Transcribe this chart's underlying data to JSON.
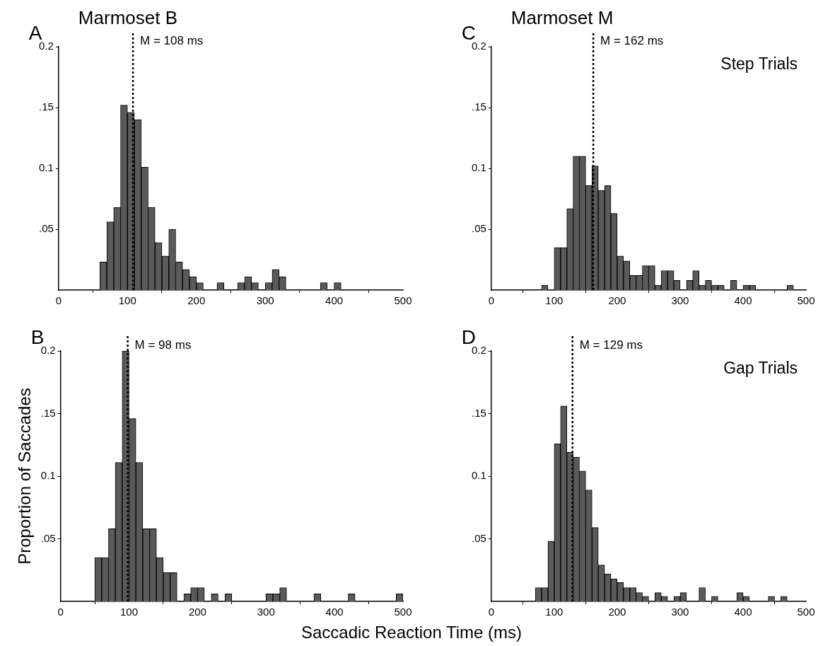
{
  "chart_data": [
    {
      "type": "histogram",
      "title": "Marmoset B",
      "annotations": [
        "A"
      ],
      "color": "#5a5a5a",
      "bins": [
        60,
        70,
        80,
        90,
        100,
        110,
        120,
        130,
        140,
        150,
        160,
        170,
        180,
        190,
        200,
        210,
        220,
        230,
        240,
        250,
        260,
        270,
        280,
        290,
        300,
        310,
        320,
        330,
        340,
        350,
        360,
        370,
        380,
        390,
        400,
        410
      ],
      "values": [
        0.023,
        0.056,
        0.068,
        0.152,
        0.146,
        0.14,
        0.101,
        0.068,
        0.039,
        0.028,
        0.05,
        0.023,
        0.017,
        0.011,
        0.006,
        0,
        0,
        0.006,
        0,
        0,
        0.006,
        0.011,
        0.006,
        0,
        0.006,
        0.017,
        0.011,
        0,
        0,
        0,
        0,
        0,
        0.006,
        0,
        0.006
      ],
      "xlim": [
        0,
        500
      ],
      "xticks": [
        0,
        100,
        200,
        300,
        400,
        500
      ],
      "ylim": [
        0,
        0.2
      ],
      "yticks": [
        {
          "value": 0.05,
          "label": ".05"
        },
        {
          "value": 0.1,
          "label": "0.1"
        },
        {
          "value": 0.15,
          "label": ".15"
        },
        {
          "value": 0.2,
          "label": "0.2"
        }
      ],
      "ref_lines": [
        {
          "axis": "x",
          "value": 108,
          "label": "M = 108 ms",
          "color": "#000000",
          "line_style": "dotted"
        }
      ]
    },
    {
      "type": "histogram",
      "title": "Marmoset M",
      "annotations": [
        "C",
        "Step Trials"
      ],
      "color": "#5a5a5a",
      "bins": [
        80,
        90,
        100,
        110,
        120,
        130,
        140,
        150,
        160,
        170,
        180,
        190,
        200,
        210,
        220,
        230,
        240,
        250,
        260,
        270,
        280,
        290,
        300,
        310,
        320,
        330,
        340,
        350,
        360,
        370,
        380,
        390,
        400,
        410,
        420,
        430,
        440,
        450,
        460,
        470,
        480
      ],
      "values": [
        0.004,
        0,
        0.035,
        0.035,
        0.067,
        0.11,
        0.11,
        0.086,
        0.102,
        0.082,
        0.086,
        0.063,
        0.028,
        0.024,
        0.012,
        0.012,
        0.02,
        0.02,
        0.004,
        0.016,
        0.016,
        0.008,
        0,
        0.008,
        0.016,
        0.004,
        0.008,
        0.004,
        0.004,
        0,
        0.008,
        0,
        0.004,
        0.004,
        0,
        0,
        0,
        0,
        0,
        0.004
      ],
      "xlim": [
        0,
        500
      ],
      "xticks": [
        0,
        100,
        200,
        300,
        400,
        500
      ],
      "ylim": [
        0,
        0.2
      ],
      "yticks": [
        {
          "value": 0.05,
          "label": ".05"
        },
        {
          "value": 0.1,
          "label": "0.1"
        },
        {
          "value": 0.15,
          "label": ".15"
        },
        {
          "value": 0.2,
          "label": "0.2"
        }
      ],
      "ref_lines": [
        {
          "axis": "x",
          "value": 162,
          "label": "M = 162 ms",
          "color": "#000000",
          "line_style": "dotted"
        }
      ]
    },
    {
      "type": "histogram",
      "annotations": [
        "B"
      ],
      "color": "#5a5a5a",
      "ylabel": "Proportion of Saccades",
      "xlabel": "Saccadic Reaction Time (ms)",
      "bins": [
        50,
        60,
        70,
        80,
        90,
        100,
        110,
        120,
        130,
        140,
        150,
        160,
        170,
        180,
        190,
        200,
        210,
        220,
        230,
        240,
        250,
        260,
        270,
        280,
        290,
        300,
        310,
        320,
        330,
        340,
        350,
        360,
        370,
        380,
        390,
        400,
        410,
        420,
        430,
        440,
        450,
        460,
        470,
        480,
        490,
        500
      ],
      "values": [
        0.035,
        0.035,
        0.058,
        0.111,
        0.2,
        0.146,
        0.111,
        0.058,
        0.058,
        0.035,
        0.023,
        0.023,
        0,
        0.006,
        0.011,
        0.011,
        0,
        0.006,
        0,
        0.006,
        0,
        0,
        0,
        0,
        0,
        0.006,
        0.006,
        0.011,
        0,
        0,
        0,
        0,
        0.006,
        0,
        0,
        0,
        0,
        0.006,
        0,
        0,
        0,
        0,
        0,
        0,
        0.006
      ],
      "xlim": [
        0,
        500
      ],
      "xticks": [
        0,
        100,
        200,
        300,
        400,
        500
      ],
      "ylim": [
        0,
        0.2
      ],
      "yticks": [
        {
          "value": 0.05,
          "label": ".05"
        },
        {
          "value": 0.1,
          "label": "0.1"
        },
        {
          "value": 0.15,
          "label": ".15"
        },
        {
          "value": 0.2,
          "label": "0.2"
        }
      ],
      "ref_lines": [
        {
          "axis": "x",
          "value": 98,
          "label": "M = 98 ms",
          "color": "#000000",
          "line_style": "dotted"
        }
      ]
    },
    {
      "type": "histogram",
      "annotations": [
        "D",
        "Gap Trials"
      ],
      "color": "#5a5a5a",
      "bins": [
        70,
        80,
        90,
        100,
        110,
        120,
        130,
        140,
        150,
        160,
        170,
        180,
        190,
        200,
        210,
        220,
        230,
        240,
        250,
        260,
        270,
        280,
        290,
        300,
        310,
        320,
        330,
        340,
        350,
        360,
        370,
        380,
        390,
        400,
        410,
        420,
        430,
        440,
        450,
        460,
        470
      ],
      "values": [
        0.011,
        0.011,
        0.048,
        0.126,
        0.156,
        0.119,
        0.115,
        0.104,
        0.089,
        0.059,
        0.029,
        0.022,
        0.018,
        0.015,
        0.011,
        0.011,
        0.007,
        0.004,
        0,
        0.007,
        0.004,
        0,
        0.004,
        0.007,
        0,
        0,
        0.011,
        0,
        0.004,
        0,
        0,
        0,
        0.007,
        0.004,
        0,
        0,
        0,
        0.004,
        0,
        0.004
      ],
      "xlim": [
        0,
        500
      ],
      "xticks": [
        0,
        100,
        200,
        300,
        400,
        500
      ],
      "ylim": [
        0,
        0.2
      ],
      "yticks": [
        {
          "value": 0.05,
          "label": ".05"
        },
        {
          "value": 0.1,
          "label": "0.1"
        },
        {
          "value": 0.15,
          "label": ".15"
        },
        {
          "value": 0.2,
          "label": "0.2"
        }
      ],
      "ref_lines": [
        {
          "axis": "x",
          "value": 129,
          "label": "M = 129 ms",
          "color": "#000000",
          "line_style": "dotted"
        }
      ]
    }
  ]
}
